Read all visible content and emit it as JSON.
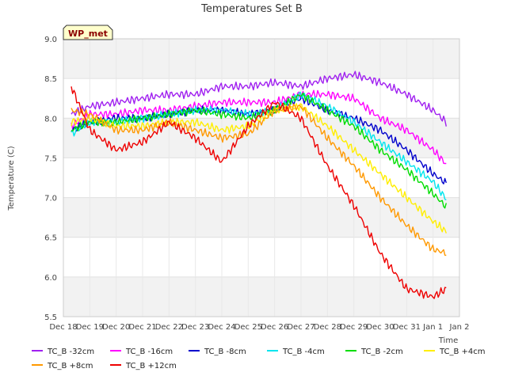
{
  "chart_data": {
    "type": "line",
    "title": "Temperatures Set B",
    "xlabel": "Time",
    "ylabel": "Temperature (C)",
    "badge": "WP_met",
    "ylim": [
      5.5,
      9.0
    ],
    "yticks": [
      5.5,
      6.0,
      6.5,
      7.0,
      7.5,
      8.0,
      8.5,
      9.0
    ],
    "ytick_labels": [
      "5.5",
      "6.0",
      "6.5",
      "7.0",
      "7.5",
      "8.0",
      "8.5",
      "9.0"
    ],
    "xlim": [
      "Dec 18",
      "Jan 2"
    ],
    "xtick_labels": [
      "Dec 18",
      "Dec 19",
      "Dec 20",
      "Dec 21",
      "Dec 22",
      "Dec 23",
      "Dec 24",
      "Dec 25",
      "Dec 26",
      "Dec 27",
      "Dec 28",
      "Dec 29",
      "Dec 30",
      "Dec 31",
      "Jan 1",
      "Jan 2"
    ],
    "x_dates": [
      "Dec 18.3",
      "Dec 19",
      "Dec 20",
      "Dec 21",
      "Dec 22",
      "Dec 23",
      "Dec 24",
      "Dec 25",
      "Dec 26",
      "Dec 27",
      "Dec 28",
      "Dec 29",
      "Dec 30",
      "Dec 31",
      "Jan 1",
      "Jan 1.5"
    ],
    "grid": true,
    "banded_background": true,
    "legend_position": "bottom",
    "series": [
      {
        "name": "TC_B -32cm",
        "color": "#a020f0",
        "values": [
          8.05,
          8.15,
          8.2,
          8.25,
          8.3,
          8.3,
          8.4,
          8.4,
          8.45,
          8.4,
          8.5,
          8.55,
          8.45,
          8.3,
          8.1,
          7.95
        ]
      },
      {
        "name": "TC_B -16cm",
        "color": "#ff00ff",
        "values": [
          7.9,
          8.05,
          8.05,
          8.1,
          8.1,
          8.15,
          8.2,
          8.2,
          8.2,
          8.3,
          8.3,
          8.25,
          8.0,
          7.85,
          7.6,
          7.42
        ]
      },
      {
        "name": "TC_B -8cm",
        "color": "#0000cc",
        "values": [
          7.85,
          7.95,
          8.0,
          8.0,
          8.05,
          8.1,
          8.1,
          8.05,
          8.1,
          8.25,
          8.1,
          8.0,
          7.85,
          7.6,
          7.3,
          7.18
        ]
      },
      {
        "name": "TC_B -4cm",
        "color": "#00e5ee",
        "values": [
          7.8,
          7.95,
          7.95,
          8.0,
          8.05,
          8.1,
          8.1,
          8.05,
          8.1,
          8.3,
          8.15,
          7.95,
          7.7,
          7.45,
          7.2,
          6.98
        ]
      },
      {
        "name": "TC_B -2cm",
        "color": "#00dd00",
        "values": [
          7.85,
          7.95,
          7.95,
          8.0,
          8.05,
          8.1,
          8.05,
          8.0,
          8.1,
          8.3,
          8.1,
          7.9,
          7.6,
          7.35,
          7.05,
          6.88
        ]
      },
      {
        "name": "TC_B +4cm",
        "color": "#ffee00",
        "values": [
          7.95,
          8.0,
          7.9,
          7.9,
          7.95,
          7.95,
          7.85,
          7.9,
          8.1,
          8.15,
          7.9,
          7.6,
          7.3,
          7.0,
          6.7,
          6.57
        ]
      },
      {
        "name": "TC_B +8cm",
        "color": "#ff9900",
        "values": [
          8.1,
          8.05,
          7.85,
          7.85,
          7.95,
          7.85,
          7.75,
          7.8,
          8.1,
          8.15,
          7.75,
          7.4,
          7.0,
          6.65,
          6.35,
          6.3
        ]
      },
      {
        "name": "TC_B +12cm",
        "color": "#ee0000",
        "values": [
          8.4,
          7.85,
          7.6,
          7.7,
          7.95,
          7.75,
          7.45,
          7.9,
          8.2,
          8.0,
          7.4,
          6.9,
          6.3,
          5.85,
          5.75,
          5.85
        ]
      }
    ]
  }
}
